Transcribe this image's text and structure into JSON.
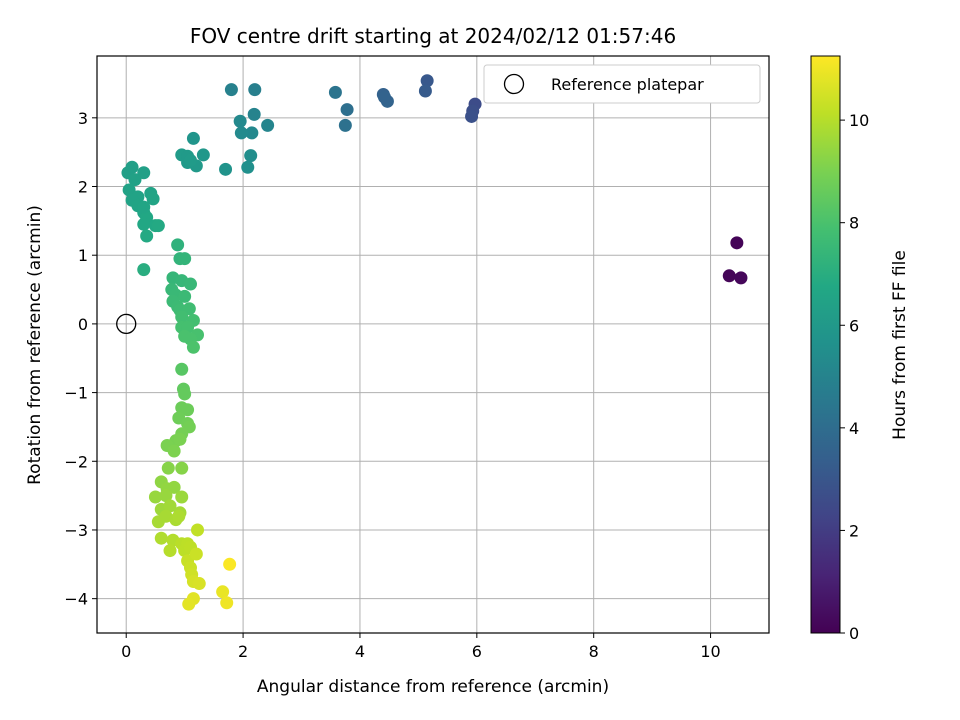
{
  "chart_data": {
    "type": "scatter",
    "title": "FOV centre drift starting at 2024/02/12 01:57:46",
    "xlabel": "Angular distance from reference (arcmin)",
    "ylabel": "Rotation from reference (arcmin)",
    "xlim": [
      -0.5,
      11.0
    ],
    "ylim": [
      -4.5,
      3.9
    ],
    "xticks": [
      0,
      2,
      4,
      6,
      8,
      10
    ],
    "yticks": [
      -4,
      -3,
      -2,
      -1,
      0,
      1,
      2,
      3
    ],
    "grid": true,
    "legend": {
      "placement": "top-right",
      "entries": [
        "Reference platepar"
      ]
    },
    "reference_point": {
      "x": 0,
      "y": 0
    },
    "colorbar": {
      "label": "Hours from first FF file",
      "range": [
        0,
        11.25
      ],
      "ticks": [
        0,
        2,
        4,
        6,
        8,
        10
      ],
      "colormap": "viridis"
    },
    "points": [
      [
        10.45,
        1.18,
        0.1
      ],
      [
        10.32,
        0.7,
        0.15
      ],
      [
        10.52,
        0.67,
        0.2
      ],
      [
        5.97,
        3.2,
        2.6
      ],
      [
        5.93,
        3.1,
        2.7
      ],
      [
        5.91,
        3.02,
        2.8
      ],
      [
        5.15,
        3.54,
        3.1
      ],
      [
        5.12,
        3.39,
        3.2
      ],
      [
        4.4,
        3.34,
        3.5
      ],
      [
        4.47,
        3.24,
        3.6
      ],
      [
        4.42,
        3.3,
        3.55
      ],
      [
        3.78,
        3.12,
        4.1
      ],
      [
        3.75,
        2.89,
        4.2
      ],
      [
        3.58,
        3.37,
        4.3
      ],
      [
        2.2,
        3.41,
        4.8
      ],
      [
        1.8,
        3.41,
        4.9
      ],
      [
        2.42,
        2.89,
        5.1
      ],
      [
        2.19,
        3.05,
        5.0
      ],
      [
        2.15,
        2.78,
        5.2
      ],
      [
        1.97,
        2.78,
        5.3
      ],
      [
        1.95,
        2.95,
        5.25
      ],
      [
        2.13,
        2.45,
        5.5
      ],
      [
        2.08,
        2.28,
        5.6
      ],
      [
        1.7,
        2.25,
        5.7
      ],
      [
        1.15,
        2.7,
        5.8
      ],
      [
        1.32,
        2.46,
        5.9
      ],
      [
        1.2,
        2.3,
        6.0
      ],
      [
        1.05,
        2.35,
        6.0
      ],
      [
        0.95,
        2.46,
        6.1
      ],
      [
        1.05,
        2.44,
        6.05
      ],
      [
        1.1,
        2.38,
        6.1
      ],
      [
        0.1,
        2.28,
        6.3
      ],
      [
        0.03,
        2.2,
        6.3
      ],
      [
        0.3,
        2.2,
        6.35
      ],
      [
        0.15,
        2.1,
        6.4
      ],
      [
        0.05,
        1.95,
        6.45
      ],
      [
        0.2,
        1.85,
        6.5
      ],
      [
        0.42,
        1.9,
        6.5
      ],
      [
        0.46,
        1.82,
        6.55
      ],
      [
        0.1,
        1.8,
        6.5
      ],
      [
        0.2,
        1.72,
        6.55
      ],
      [
        0.3,
        1.62,
        6.6
      ],
      [
        0.35,
        1.55,
        6.7
      ],
      [
        0.5,
        1.43,
        6.75
      ],
      [
        0.55,
        1.43,
        6.8
      ],
      [
        0.3,
        1.45,
        6.7
      ],
      [
        0.35,
        1.28,
        6.8
      ],
      [
        0.3,
        1.7,
        6.6
      ],
      [
        0.3,
        0.79,
        7.0
      ],
      [
        0.88,
        1.15,
        7.2
      ],
      [
        0.92,
        0.95,
        7.3
      ],
      [
        1.0,
        0.95,
        7.35
      ],
      [
        0.8,
        0.67,
        7.4
      ],
      [
        0.95,
        0.63,
        7.45
      ],
      [
        1.1,
        0.58,
        7.5
      ],
      [
        0.78,
        0.5,
        7.5
      ],
      [
        0.85,
        0.42,
        7.55
      ],
      [
        1.0,
        0.4,
        7.6
      ],
      [
        0.8,
        0.33,
        7.6
      ],
      [
        0.88,
        0.25,
        7.65
      ],
      [
        0.92,
        0.2,
        7.7
      ],
      [
        1.08,
        0.22,
        7.75
      ],
      [
        0.95,
        0.1,
        7.8
      ],
      [
        1.15,
        0.05,
        7.85
      ],
      [
        0.95,
        -0.05,
        7.9
      ],
      [
        1.05,
        -0.05,
        7.9
      ],
      [
        1.22,
        -0.16,
        7.95
      ],
      [
        1.0,
        -0.18,
        8.0
      ],
      [
        1.1,
        -0.22,
        8.0
      ],
      [
        1.15,
        -0.34,
        8.05
      ],
      [
        0.95,
        -0.66,
        8.3
      ],
      [
        0.98,
        -0.95,
        8.5
      ],
      [
        1.0,
        -1.02,
        8.55
      ],
      [
        0.95,
        -1.22,
        8.7
      ],
      [
        1.05,
        -1.25,
        8.7
      ],
      [
        0.9,
        -1.37,
        8.75
      ],
      [
        1.05,
        -1.45,
        8.8
      ],
      [
        1.08,
        -1.5,
        8.85
      ],
      [
        0.95,
        -1.6,
        8.9
      ],
      [
        0.85,
        -1.7,
        8.95
      ],
      [
        0.7,
        -1.77,
        9.0
      ],
      [
        0.92,
        -1.68,
        9.0
      ],
      [
        0.82,
        -1.85,
        9.05
      ],
      [
        0.95,
        -2.1,
        9.2
      ],
      [
        0.72,
        -2.1,
        9.2
      ],
      [
        0.6,
        -2.3,
        9.35
      ],
      [
        0.7,
        -2.4,
        9.4
      ],
      [
        0.82,
        -2.38,
        9.4
      ],
      [
        0.5,
        -2.52,
        9.5
      ],
      [
        0.68,
        -2.5,
        9.5
      ],
      [
        0.95,
        -2.52,
        9.55
      ],
      [
        0.6,
        -2.7,
        9.6
      ],
      [
        0.75,
        -2.65,
        9.65
      ],
      [
        0.92,
        -2.75,
        9.7
      ],
      [
        0.55,
        -2.88,
        9.75
      ],
      [
        0.68,
        -2.8,
        9.75
      ],
      [
        0.85,
        -2.85,
        9.8
      ],
      [
        0.9,
        -2.8,
        9.85
      ],
      [
        0.6,
        -3.12,
        9.9
      ],
      [
        0.8,
        -3.15,
        9.95
      ],
      [
        0.75,
        -3.3,
        10.0
      ],
      [
        0.95,
        -3.2,
        10.05
      ],
      [
        1.0,
        -3.3,
        10.1
      ],
      [
        1.05,
        -3.2,
        10.1
      ],
      [
        1.1,
        -3.25,
        10.15
      ],
      [
        1.22,
        -3.0,
        10.2
      ],
      [
        1.05,
        -3.45,
        10.3
      ],
      [
        1.1,
        -3.55,
        10.35
      ],
      [
        1.2,
        -3.35,
        10.35
      ],
      [
        1.12,
        -3.65,
        10.45
      ],
      [
        1.15,
        -3.75,
        10.55
      ],
      [
        1.25,
        -3.78,
        10.6
      ],
      [
        1.15,
        -4.0,
        10.75
      ],
      [
        1.07,
        -4.08,
        10.8
      ],
      [
        1.65,
        -3.9,
        10.9
      ],
      [
        1.72,
        -4.06,
        11.0
      ],
      [
        1.77,
        -3.5,
        11.2
      ]
    ]
  }
}
